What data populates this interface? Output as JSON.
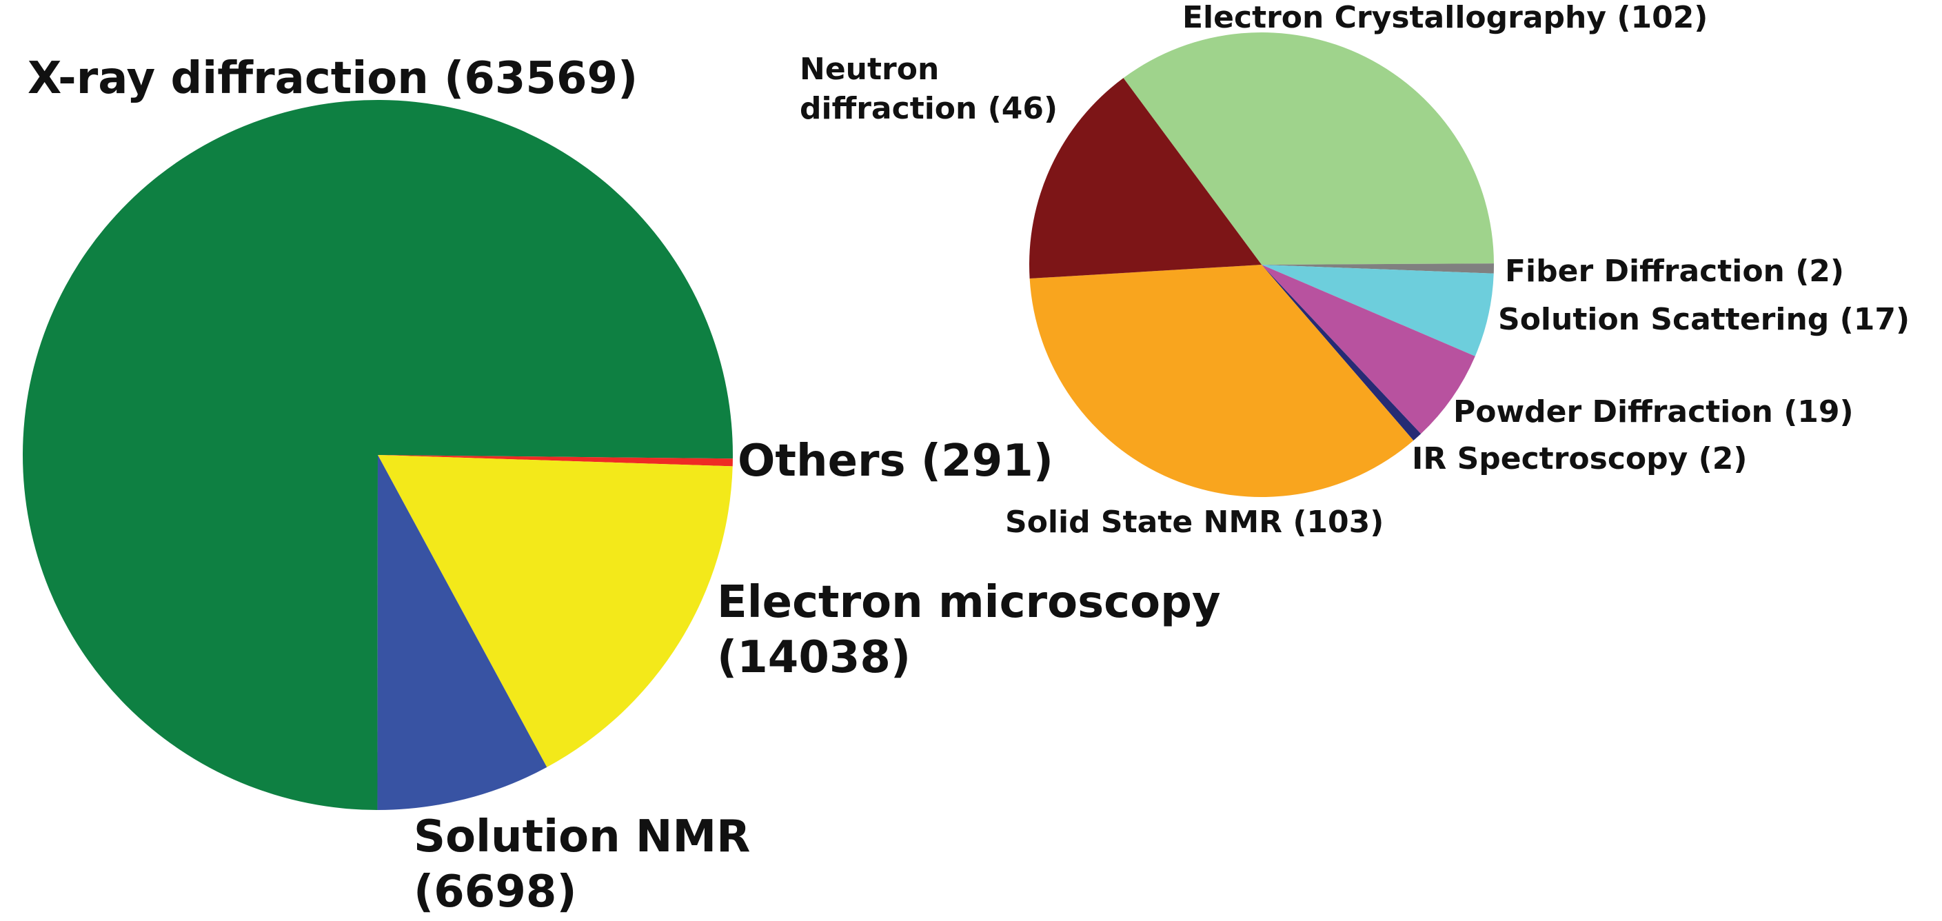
{
  "chart_data": [
    {
      "type": "pie",
      "title": "",
      "slices": [
        {
          "label": "X-ray diffraction (63569)",
          "value": 63569,
          "color": "#0e8042"
        },
        {
          "label": "Others (291)",
          "value": 291,
          "color": "#ee2b24"
        },
        {
          "label": "Electron microscopy (14038)",
          "value": 14038,
          "color": "#f3e91a"
        },
        {
          "label": "Solution NMR (6698)",
          "value": 6698,
          "color": "#3853a3"
        }
      ]
    },
    {
      "type": "pie",
      "title": "",
      "slices": [
        {
          "label": "Electron Crystallography (102)",
          "value": 102,
          "color": "#9fd38c"
        },
        {
          "label": "Fiber Diffraction (2)",
          "value": 2,
          "color": "#808080"
        },
        {
          "label": "Solution Scattering (17)",
          "value": 17,
          "color": "#6dcedc"
        },
        {
          "label": "Powder Diffraction (19)",
          "value": 19,
          "color": "#b8529f"
        },
        {
          "label": "IR Spectroscopy (2)",
          "value": 2,
          "color": "#262b74"
        },
        {
          "label": "Solid State NMR (103)",
          "value": 103,
          "color": "#f9a51e"
        },
        {
          "label": "Neutron diffraction (46)",
          "value": 46,
          "color": "#7d1517"
        }
      ]
    }
  ],
  "labels": {
    "xray": "X-ray diffraction (63569)",
    "others": "Others (291)",
    "em_line1": "Electron microscopy",
    "em_line2": "(14038)",
    "nmr_line1": "Solution NMR",
    "nmr_line2": "(6698)",
    "ec": "Electron Crystallography (102)",
    "neutron_line1": "Neutron",
    "neutron_line2": "diffraction (46)",
    "fiber": "Fiber Diffraction (2)",
    "scatter": "Solution Scattering (17)",
    "powder": "Powder Diffraction (19)",
    "ir": "IR Spectroscopy (2)",
    "ssnmr": "Solid State NMR (103)"
  }
}
